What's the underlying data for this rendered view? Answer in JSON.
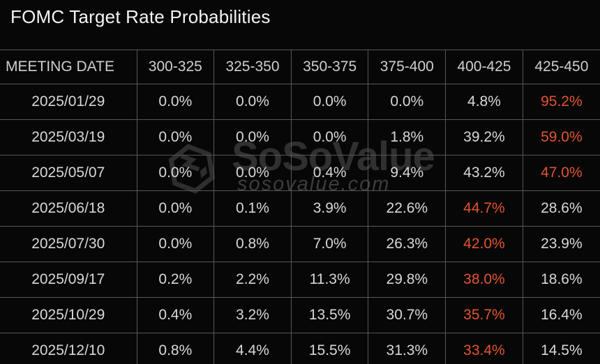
{
  "title": "FOMC Target Rate Probabilities",
  "watermark": {
    "brand": "SoSoValue",
    "domain": "sosovalue.com",
    "logo_icon": "sosovalue-cube-logo"
  },
  "colors": {
    "background": "#070707",
    "grid_border": "#585858",
    "title_text": "#f4f4f4",
    "header_text": "#cfcfcf",
    "cell_text": "#d8d8d8",
    "highlight_text": "#e25530",
    "watermark_text": "#303030"
  },
  "table": {
    "columns": [
      "MEETING DATE",
      "300-325",
      "325-350",
      "350-375",
      "375-400",
      "400-425",
      "425-450"
    ],
    "rows": [
      {
        "date": "2025/01/29",
        "values": [
          "0.0%",
          "0.0%",
          "0.0%",
          "0.0%",
          "4.8%",
          "95.2%"
        ],
        "highlight_index": 5
      },
      {
        "date": "2025/03/19",
        "values": [
          "0.0%",
          "0.0%",
          "0.0%",
          "1.8%",
          "39.2%",
          "59.0%"
        ],
        "highlight_index": 5
      },
      {
        "date": "2025/05/07",
        "values": [
          "0.0%",
          "0.0%",
          "0.4%",
          "9.4%",
          "43.2%",
          "47.0%"
        ],
        "highlight_index": 5
      },
      {
        "date": "2025/06/18",
        "values": [
          "0.0%",
          "0.1%",
          "3.9%",
          "22.6%",
          "44.7%",
          "28.6%"
        ],
        "highlight_index": 4
      },
      {
        "date": "2025/07/30",
        "values": [
          "0.0%",
          "0.8%",
          "7.0%",
          "26.3%",
          "42.0%",
          "23.9%"
        ],
        "highlight_index": 4
      },
      {
        "date": "2025/09/17",
        "values": [
          "0.2%",
          "2.2%",
          "11.3%",
          "29.8%",
          "38.0%",
          "18.6%"
        ],
        "highlight_index": 4
      },
      {
        "date": "2025/10/29",
        "values": [
          "0.4%",
          "3.2%",
          "13.5%",
          "30.7%",
          "35.7%",
          "16.4%"
        ],
        "highlight_index": 4
      },
      {
        "date": "2025/12/10",
        "values": [
          "0.8%",
          "4.4%",
          "15.5%",
          "31.3%",
          "33.4%",
          "14.5%"
        ],
        "highlight_index": 4
      }
    ]
  },
  "chart_data": {
    "type": "table",
    "title": "FOMC Target Rate Probabilities",
    "units": "percent probability",
    "columns": [
      "MEETING DATE",
      "300-325",
      "325-350",
      "350-375",
      "375-400",
      "400-425",
      "425-450"
    ],
    "rows": [
      [
        "2025/01/29",
        0.0,
        0.0,
        0.0,
        0.0,
        4.8,
        95.2
      ],
      [
        "2025/03/19",
        0.0,
        0.0,
        0.0,
        1.8,
        39.2,
        59.0
      ],
      [
        "2025/05/07",
        0.0,
        0.0,
        0.4,
        9.4,
        43.2,
        47.0
      ],
      [
        "2025/06/18",
        0.0,
        0.1,
        3.9,
        22.6,
        44.7,
        28.6
      ],
      [
        "2025/07/30",
        0.0,
        0.8,
        7.0,
        26.3,
        42.0,
        23.9
      ],
      [
        "2025/09/17",
        0.2,
        2.2,
        11.3,
        29.8,
        38.0,
        18.6
      ],
      [
        "2025/10/29",
        0.4,
        3.2,
        13.5,
        30.7,
        35.7,
        16.4
      ],
      [
        "2025/12/10",
        0.8,
        4.4,
        15.5,
        31.3,
        33.4,
        14.5
      ]
    ],
    "highlighted_cells": [
      {
        "row": "2025/01/29",
        "column": "425-450",
        "value": 95.2
      },
      {
        "row": "2025/03/19",
        "column": "425-450",
        "value": 59.0
      },
      {
        "row": "2025/05/07",
        "column": "425-450",
        "value": 47.0
      },
      {
        "row": "2025/06/18",
        "column": "400-425",
        "value": 44.7
      },
      {
        "row": "2025/07/30",
        "column": "400-425",
        "value": 42.0
      },
      {
        "row": "2025/09/17",
        "column": "400-425",
        "value": 38.0
      },
      {
        "row": "2025/10/29",
        "column": "400-425",
        "value": 35.7
      },
      {
        "row": "2025/12/10",
        "column": "400-425",
        "value": 33.4
      }
    ],
    "layout": {
      "grid": true,
      "theme": "dark",
      "highlight_meaning": "highest-probability rate bucket per meeting"
    }
  }
}
